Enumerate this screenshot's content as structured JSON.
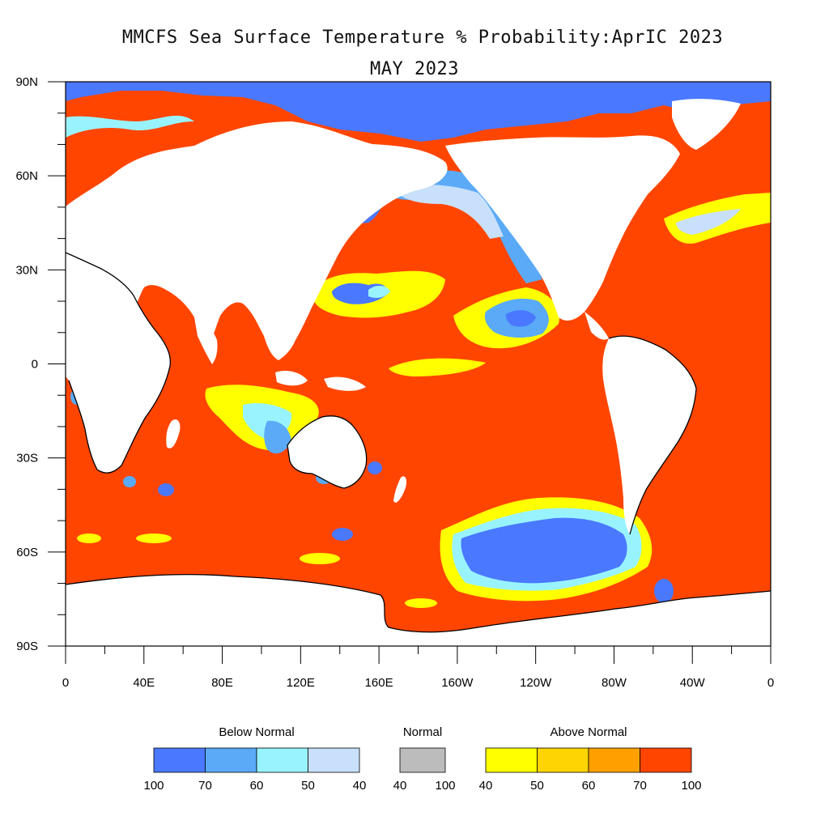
{
  "title": {
    "line1": "MMCFS Sea Surface Temperature % Probability:AprIC 2023",
    "line2": "MAY 2023"
  },
  "axes": {
    "y_ticks": [
      "90N",
      "60N",
      "30N",
      "0",
      "30S",
      "60S",
      "90S"
    ],
    "x_ticks": [
      "0",
      "40E",
      "80E",
      "120E",
      "160E",
      "160W",
      "120W",
      "80W",
      "40W",
      "0"
    ]
  },
  "colors": {
    "below_100_70": "#4a78ff",
    "below_70_60": "#5aaaf7",
    "below_60_50": "#99f3ff",
    "below_50_40": "#c8e0fb",
    "normal": "#bcbcbc",
    "above_40_50": "#ffff00",
    "above_50_60": "#ffd400",
    "above_60_70": "#ffa000",
    "above_70_100": "#ff4500",
    "land": "#ffffff"
  },
  "legend": {
    "below": {
      "title": "Below Normal",
      "ticks": [
        "100",
        "70",
        "60",
        "50",
        "40"
      ]
    },
    "normal": {
      "title": "Normal",
      "ticks": [
        "40",
        "100"
      ]
    },
    "above": {
      "title": "Above Normal",
      "ticks": [
        "40",
        "50",
        "60",
        "70",
        "100"
      ]
    }
  }
}
